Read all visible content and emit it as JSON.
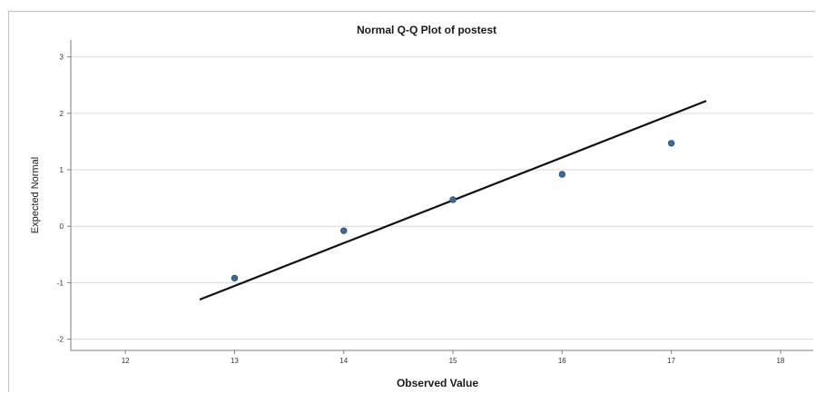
{
  "chart_data": {
    "type": "scatter",
    "title": "Normal Q-Q Plot of postest",
    "xlabel": "Observed Value",
    "ylabel": "Expected Normal",
    "xlim": [
      11.5,
      18.3
    ],
    "ylim": [
      -2.2,
      3.3
    ],
    "x_ticks": [
      12,
      13,
      14,
      15,
      16,
      17,
      18
    ],
    "y_ticks": [
      3,
      2,
      1,
      0,
      -1,
      -2
    ],
    "grid": "horizontal",
    "colors": {
      "points": "#3d6b95",
      "line": "#111111",
      "grid": "#d9d9d9",
      "axis": "#7f7f7f"
    },
    "series": [
      {
        "values": [
          {
            "x": 13,
            "y": -0.92
          },
          {
            "x": 14,
            "y": -0.08
          },
          {
            "x": 15,
            "y": 0.47
          },
          {
            "x": 16,
            "y": 0.92
          },
          {
            "x": 17,
            "y": 1.47
          }
        ]
      }
    ],
    "reference_line": {
      "x": [
        12.68,
        17.32
      ],
      "y": [
        -1.3,
        2.22
      ]
    }
  }
}
